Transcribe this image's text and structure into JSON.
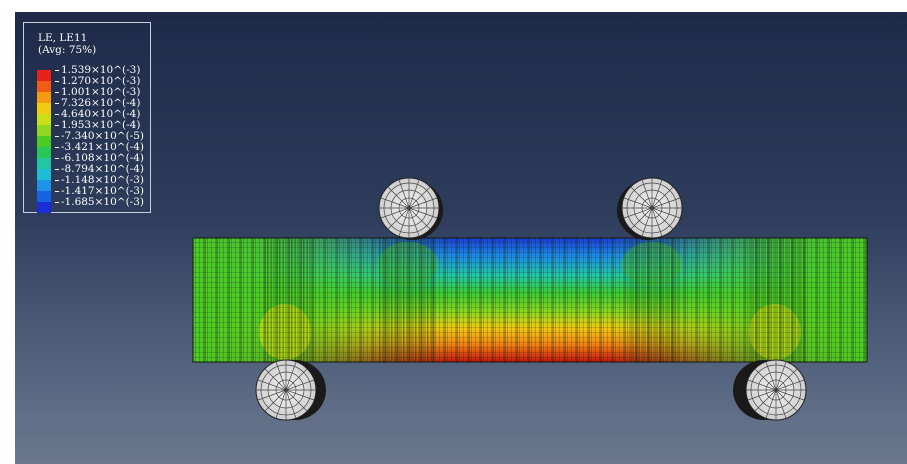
{
  "legend": {
    "title": "LE, LE11",
    "subtitle": "(Avg: 75%)",
    "values": [
      "1.539×10^(-3)",
      "1.270×10^(-3)",
      "1.001×10^(-3)",
      "7.326×10^(-4)",
      "4.640×10^(-4)",
      "1.953×10^(-4)",
      "-7.340×10^(-5)",
      "-3.421×10^(-4)",
      "-6.108×10^(-4)",
      "-8.794×10^(-4)",
      "-1.148×10^(-3)",
      "-1.417×10^(-3)",
      "-1.685×10^(-3)"
    ],
    "colors": [
      "#e8211b",
      "#f05c16",
      "#f59a12",
      "#f0cc10",
      "#c9e015",
      "#8fd81f",
      "#4ccc23",
      "#28c858",
      "#22c7a2",
      "#1fbcd8",
      "#1c93e6",
      "#1762e3",
      "#1a2dd6"
    ]
  },
  "background": {
    "top": "#1d2a48",
    "bottom": "#6b7890"
  },
  "model": {
    "beam": "fringe-plot-beam",
    "rollers": [
      "top-left-roller",
      "top-right-roller",
      "bottom-left-roller",
      "bottom-right-roller"
    ]
  }
}
